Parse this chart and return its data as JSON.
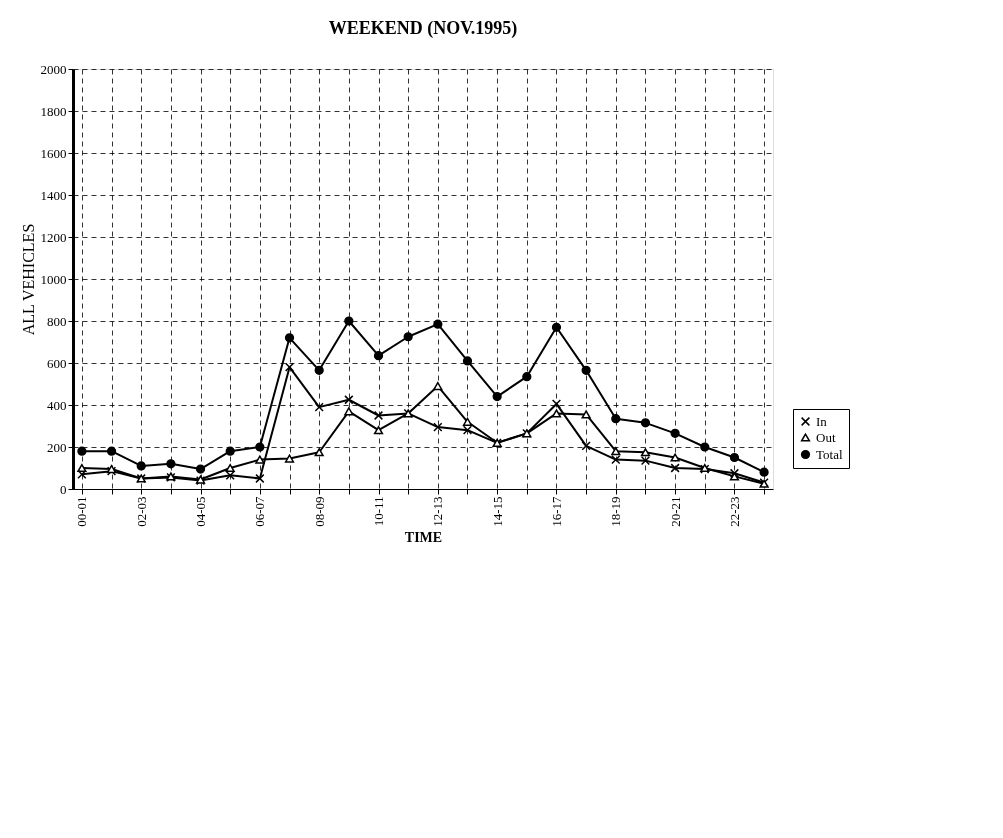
{
  "chart_data": {
    "type": "line",
    "title": "WEEKEND  (NOV.1995)",
    "xlabel": "TIME",
    "ylabel": "ALL VEHICLES",
    "categories": [
      "00-01",
      null,
      "02-03",
      null,
      "04-05",
      null,
      "06-07",
      null,
      "08-09",
      null,
      "10-11",
      null,
      "12-13",
      null,
      "14-15",
      null,
      "16-17",
      null,
      "18-19",
      null,
      "20-21",
      null,
      "22-23",
      null
    ],
    "series": [
      {
        "name": "In",
        "color": "#000000",
        "marker": "cross",
        "values": [
          70,
          85,
          50,
          55,
          40,
          65,
          50,
          580,
          390,
          425,
          350,
          360,
          295,
          280,
          220,
          265,
          405,
          205,
          140,
          135,
          100,
          95,
          75,
          30
        ]
      },
      {
        "name": "Out",
        "color": "#000000",
        "marker": "triangle",
        "values": [
          100,
          95,
          50,
          60,
          45,
          100,
          140,
          145,
          175,
          370,
          280,
          360,
          490,
          320,
          220,
          265,
          360,
          355,
          180,
          175,
          150,
          100,
          60,
          25
        ]
      },
      {
        "name": "Total",
        "color": "#000000",
        "marker": "circle",
        "values": [
          180,
          180,
          110,
          120,
          95,
          180,
          200,
          720,
          565,
          800,
          635,
          725,
          785,
          610,
          440,
          535,
          770,
          565,
          335,
          315,
          265,
          200,
          150,
          80
        ]
      }
    ],
    "ylim": [
      0,
      2000
    ],
    "yticks": [
      0,
      200,
      400,
      600,
      800,
      1000,
      1200,
      1400,
      1600,
      1800,
      2000
    ],
    "grid": true,
    "legend": "bottom right",
    "line_style": "solid"
  }
}
